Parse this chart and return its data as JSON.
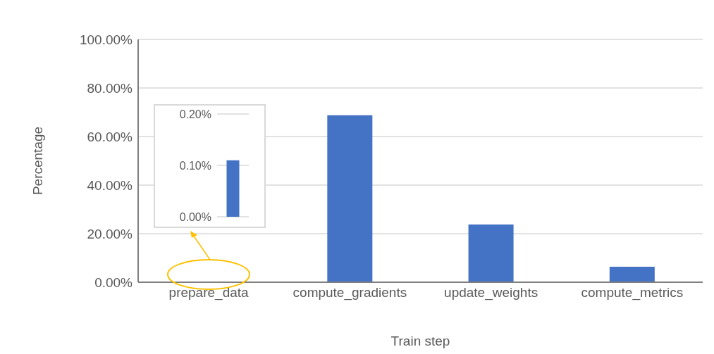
{
  "chart_data": [
    {
      "type": "bar",
      "xlabel": "Train step",
      "ylabel": "Percentage",
      "categories": [
        "prepare_data",
        "compute_gradients",
        "update_weights",
        "compute_metrics"
      ],
      "values": [
        0.11,
        68.8,
        23.8,
        6.4
      ],
      "color": "#4472c4",
      "ylim": [
        0,
        100
      ],
      "yticks": [
        {
          "value": 0,
          "label": "0.00%"
        },
        {
          "value": 20,
          "label": "20.00%"
        },
        {
          "value": 40,
          "label": "40.00%"
        },
        {
          "value": 60,
          "label": "60.00%"
        },
        {
          "value": 80,
          "label": "80.00%"
        },
        {
          "value": 100,
          "label": "100.00%"
        }
      ],
      "grid": "y"
    },
    {
      "type": "bar",
      "categories": [
        null
      ],
      "values": [
        0.11
      ],
      "color": "#4472c4",
      "ylim": [
        0,
        0.2
      ],
      "yticks": [
        {
          "value": 0,
          "label": "0.00%"
        },
        {
          "value": 0.1,
          "label": "0.10%"
        },
        {
          "value": 0.2,
          "label": "0.20%"
        }
      ],
      "grid": "y",
      "tick_labels": "y"
    }
  ]
}
